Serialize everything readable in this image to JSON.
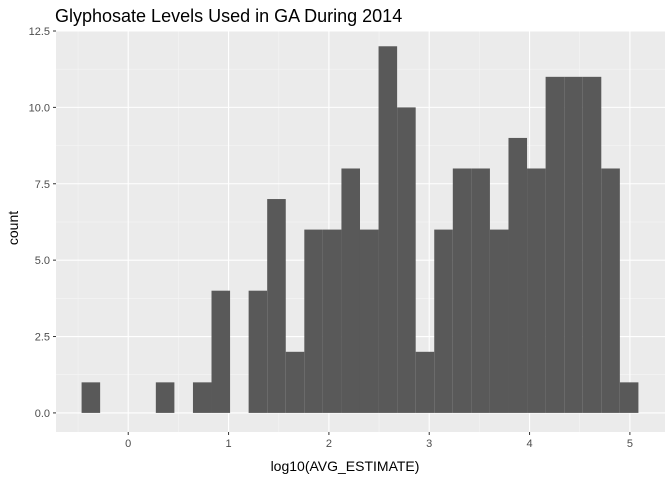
{
  "chart_data": {
    "type": "bar",
    "title": "Glyphosate Levels Used in GA During 2014",
    "xlabel": "log10(AVG_ESTIMATE)",
    "ylabel": "count",
    "xlim": [
      -0.72,
      5.35
    ],
    "ylim": [
      -0.625,
      12.5
    ],
    "x_ticks": [
      0,
      1,
      2,
      3,
      4,
      5
    ],
    "x_tick_labels": [
      "0",
      "1",
      "2",
      "3",
      "4",
      "5"
    ],
    "y_ticks": [
      0,
      2.5,
      5,
      7.5,
      10,
      12.5
    ],
    "y_tick_labels": [
      "0.0",
      "2.5",
      "5.0",
      "7.5",
      "10.0",
      "12.5"
    ],
    "grid": true,
    "legend": "none",
    "bins": [
      {
        "start": -0.465,
        "end": -0.28,
        "count": 1
      },
      {
        "start": -0.28,
        "end": -0.095,
        "count": 0
      },
      {
        "start": -0.095,
        "end": 0.09,
        "count": 0
      },
      {
        "start": 0.09,
        "end": 0.275,
        "count": 0
      },
      {
        "start": 0.275,
        "end": 0.46,
        "count": 1
      },
      {
        "start": 0.46,
        "end": 0.645,
        "count": 0
      },
      {
        "start": 0.645,
        "end": 0.83,
        "count": 1
      },
      {
        "start": 0.83,
        "end": 1.015,
        "count": 4
      },
      {
        "start": 1.015,
        "end": 1.2,
        "count": 0
      },
      {
        "start": 1.2,
        "end": 1.385,
        "count": 4
      },
      {
        "start": 1.385,
        "end": 1.57,
        "count": 7
      },
      {
        "start": 1.57,
        "end": 1.755,
        "count": 2
      },
      {
        "start": 1.755,
        "end": 1.94,
        "count": 6
      },
      {
        "start": 1.94,
        "end": 2.125,
        "count": 6
      },
      {
        "start": 2.125,
        "end": 2.31,
        "count": 8
      },
      {
        "start": 2.31,
        "end": 2.495,
        "count": 6
      },
      {
        "start": 2.495,
        "end": 2.68,
        "count": 12
      },
      {
        "start": 2.68,
        "end": 2.865,
        "count": 10
      },
      {
        "start": 2.865,
        "end": 3.05,
        "count": 2
      },
      {
        "start": 3.05,
        "end": 3.235,
        "count": 6
      },
      {
        "start": 3.235,
        "end": 3.42,
        "count": 8
      },
      {
        "start": 3.42,
        "end": 3.605,
        "count": 8
      },
      {
        "start": 3.605,
        "end": 3.79,
        "count": 6
      },
      {
        "start": 3.79,
        "end": 3.975,
        "count": 9
      },
      {
        "start": 3.975,
        "end": 4.16,
        "count": 8
      },
      {
        "start": 4.16,
        "end": 4.345,
        "count": 11
      },
      {
        "start": 4.345,
        "end": 4.53,
        "count": 11
      },
      {
        "start": 4.53,
        "end": 4.715,
        "count": 11
      },
      {
        "start": 4.715,
        "end": 4.9,
        "count": 8
      },
      {
        "start": 4.9,
        "end": 5.085,
        "count": 1
      }
    ],
    "colors": {
      "bar": "#595959",
      "panel_background": "#ebebeb",
      "grid_major": "#ffffff",
      "grid_minor": "#f5f5f5",
      "tick_text": "#4d4d4d",
      "tick_mark": "#333333"
    }
  }
}
